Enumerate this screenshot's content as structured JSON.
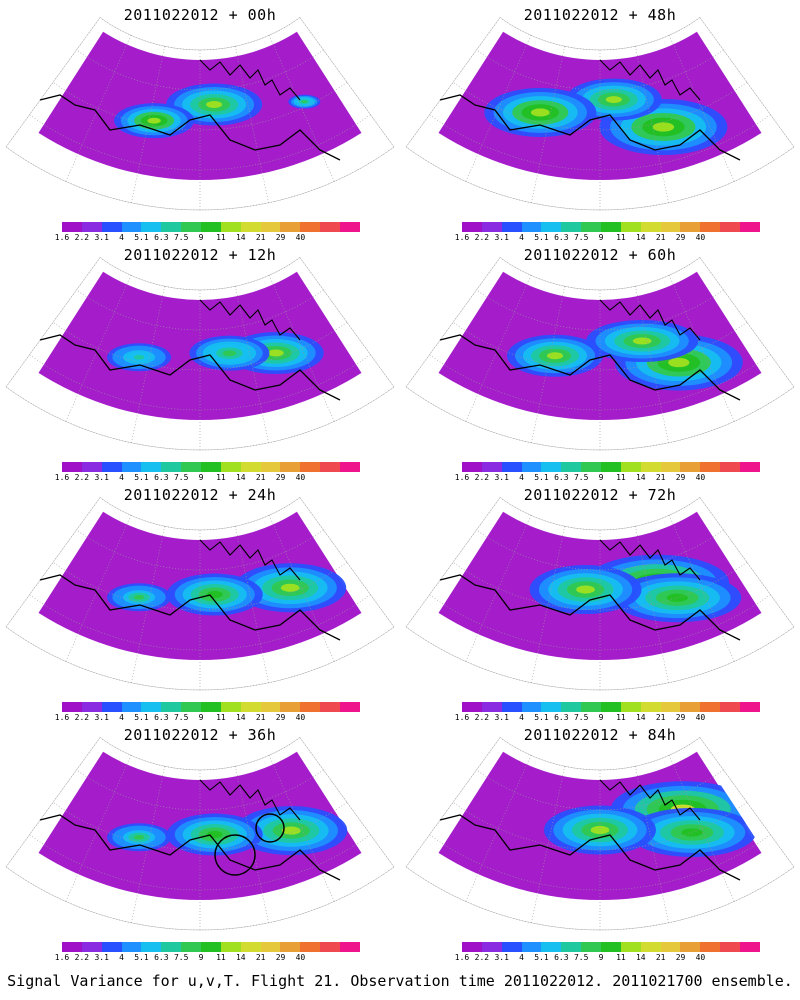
{
  "caption": "Signal Variance for u,v,T. Flight 21. Observation time 2011022012. 2011021700 ensemble.",
  "colorbar": {
    "colors": [
      "#a010c8",
      "#8a2be2",
      "#2850ff",
      "#1e90ff",
      "#16bff0",
      "#20c8a0",
      "#30c850",
      "#22c022",
      "#a0e020",
      "#d2dc30",
      "#e6c83c",
      "#e8a036",
      "#f07030",
      "#f04850",
      "#f0148c"
    ],
    "labels": [
      "1.6",
      "2.2",
      "3.1",
      "4",
      "5.1",
      "6.3",
      "7.5",
      "9",
      "11",
      "14",
      "21",
      "29",
      "40"
    ]
  },
  "panels": [
    {
      "title": "2011022012 + 00h",
      "blobs": [
        [
          0.55,
          0.35,
          0.55,
          0.3,
          0.3
        ],
        [
          0.35,
          0.55,
          0.6,
          0.25,
          0.25
        ],
        [
          0.85,
          0.55,
          0.4,
          0.1,
          0.1
        ]
      ],
      "circles": false
    },
    {
      "title": "2011022012 + 12h",
      "blobs": [
        [
          0.75,
          0.55,
          0.55,
          0.3,
          0.3
        ],
        [
          0.6,
          0.45,
          0.4,
          0.25,
          0.25
        ],
        [
          0.3,
          0.55,
          0.3,
          0.2,
          0.2
        ]
      ],
      "circles": false
    },
    {
      "title": "2011022012 + 24h",
      "blobs": [
        [
          0.8,
          0.55,
          0.55,
          0.35,
          0.35
        ],
        [
          0.55,
          0.45,
          0.45,
          0.3,
          0.3
        ],
        [
          0.3,
          0.55,
          0.35,
          0.2,
          0.2
        ]
      ],
      "circles": false
    },
    {
      "title": "2011022012 + 36h",
      "blobs": [
        [
          0.8,
          0.58,
          0.55,
          0.35,
          0.35
        ],
        [
          0.55,
          0.45,
          0.45,
          0.3,
          0.3
        ],
        [
          0.3,
          0.55,
          0.35,
          0.2,
          0.2
        ]
      ],
      "circles": true
    },
    {
      "title": "2011022012 + 48h",
      "blobs": [
        [
          0.7,
          0.65,
          0.6,
          0.4,
          0.4
        ],
        [
          0.55,
          0.3,
          0.55,
          0.3,
          0.3
        ],
        [
          0.3,
          0.5,
          0.6,
          0.35,
          0.35
        ]
      ],
      "circles": false
    },
    {
      "title": "2011022012 + 60h",
      "blobs": [
        [
          0.75,
          0.65,
          0.6,
          0.4,
          0.4
        ],
        [
          0.65,
          0.35,
          0.55,
          0.35,
          0.3
        ],
        [
          0.35,
          0.5,
          0.55,
          0.3,
          0.3
        ]
      ],
      "circles": false
    },
    {
      "title": "2011022012 + 72h",
      "blobs": [
        [
          0.7,
          0.4,
          0.65,
          0.45,
          0.4
        ],
        [
          0.75,
          0.6,
          0.5,
          0.4,
          0.35
        ],
        [
          0.45,
          0.4,
          0.55,
          0.35,
          0.35
        ]
      ],
      "circles": false
    },
    {
      "title": "2011022012 + 84h",
      "blobs": [
        [
          0.8,
          0.35,
          0.65,
          0.45,
          0.4
        ],
        [
          0.8,
          0.6,
          0.5,
          0.4,
          0.35
        ],
        [
          0.5,
          0.4,
          0.55,
          0.35,
          0.35
        ]
      ],
      "circles": false
    }
  ]
}
